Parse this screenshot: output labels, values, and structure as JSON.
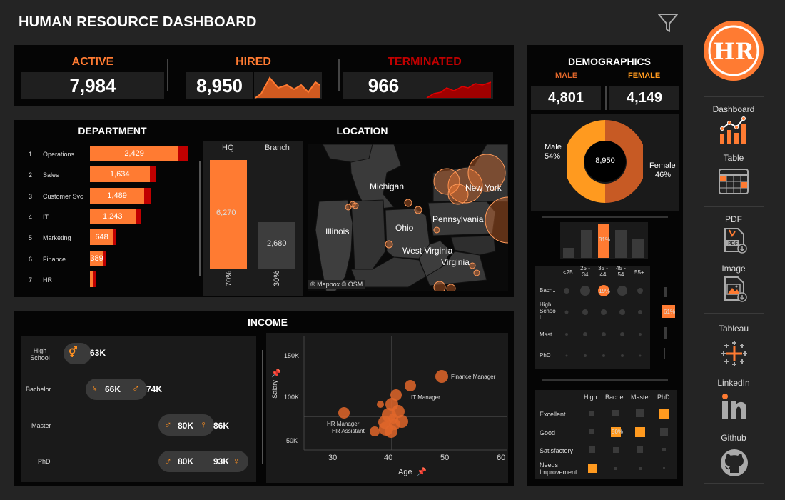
{
  "header": {
    "title": "HUMAN RESOURCE DASHBOARD"
  },
  "colors": {
    "accent": "#ff7b32",
    "dark_red": "#c00000",
    "orange": "#ff9a1f",
    "bg": "#242424",
    "panel": "#050505"
  },
  "kpi": {
    "active": {
      "label": "ACTIVE",
      "value": "7,984"
    },
    "hired": {
      "label": "HIRED",
      "value": "8,950"
    },
    "terminated": {
      "label": "TERMINATED",
      "value": "966"
    }
  },
  "department": {
    "title": "DEPARTMENT",
    "rows": [
      {
        "rank": "1",
        "name": "Operations",
        "value": "2,429",
        "num": 2429
      },
      {
        "rank": "2",
        "name": "Sales",
        "value": "1,634",
        "num": 1634
      },
      {
        "rank": "3",
        "name": "Customer Svc",
        "value": "1,489",
        "num": 1489
      },
      {
        "rank": "4",
        "name": "IT",
        "value": "1,243",
        "num": 1243
      },
      {
        "rank": "5",
        "name": "Marketing",
        "value": "648",
        "num": 648
      },
      {
        "rank": "6",
        "name": "Finance",
        "value": "389",
        "num": 389
      },
      {
        "rank": "7",
        "name": "HR",
        "value": "",
        "num": 118
      }
    ]
  },
  "location": {
    "title": "LOCATION",
    "hq_label": "HQ",
    "branch_label": "Branch",
    "hq_value": "6,270",
    "branch_value": "2,680",
    "hq_pct": "70%",
    "branch_pct": "30%",
    "hq_fraction": 0.7,
    "branch_fraction": 0.3,
    "states": [
      "Michigan",
      "New York",
      "Pennsylvania",
      "Illinois",
      "Ohio",
      "West Virginia",
      "Virginia"
    ],
    "attribution": "© Mapbox © OSM"
  },
  "demographics": {
    "title": "DEMOGRAPHICS",
    "male_label": "MALE",
    "female_label": "FEMALE",
    "male_value": "4,801",
    "female_value": "4,149",
    "donut_total": "8,950",
    "male_pct_label": "Male",
    "male_pct": "54%",
    "female_pct_label": "Female",
    "female_pct": "46%",
    "age_highlight": "31%",
    "age_cols": [
      "<25",
      "25 -\n34",
      "35 -\n44",
      "45 -\n54",
      "55+"
    ],
    "edu_rows": [
      "Bach..",
      "High\nSchoo\nl",
      "Mast..",
      "PhD"
    ],
    "matrix_highlight": "19%",
    "side_highlight": "61%",
    "perf_cols": [
      "High ..",
      "Bachel..",
      "Master",
      "PhD"
    ],
    "perf_rows": [
      "Excellent",
      "Good",
      "Satisfactory",
      "Needs\nImprovement"
    ],
    "perf_highlight": "50%"
  },
  "income": {
    "title": "INCOME",
    "rows": [
      {
        "label": "High\nSchool",
        "female": "",
        "male": "63K"
      },
      {
        "label": "Bachelor",
        "female": "66K",
        "male": "74K"
      },
      {
        "label": "Master",
        "female": "86K",
        "male": "80K"
      },
      {
        "label": "PhD",
        "female": "93K",
        "male": "80K"
      }
    ],
    "scatter": {
      "xlabel": "Age",
      "ylabel": "Salary",
      "yticks": [
        "150K",
        "100K",
        "50K"
      ],
      "xticks": [
        "30",
        "40",
        "50",
        "60"
      ],
      "labels": {
        "finance": "Finance Manager",
        "it": "IT Manager",
        "hrm": "HR Manager",
        "hra": "HR Assistant"
      }
    }
  },
  "nav": {
    "items": [
      {
        "label": "Dashboard",
        "icon": "dashboard-chart-icon"
      },
      {
        "label": "Table",
        "icon": "calendar-table-icon"
      },
      {
        "label": "PDF",
        "icon": "pdf-download-icon"
      },
      {
        "label": "Image",
        "icon": "image-download-icon"
      },
      {
        "label": "Tableau",
        "icon": "tableau-icon"
      },
      {
        "label": "LinkedIn",
        "icon": "linkedin-icon"
      },
      {
        "label": "Github",
        "icon": "github-icon"
      }
    ],
    "logo_text": "HR"
  }
}
